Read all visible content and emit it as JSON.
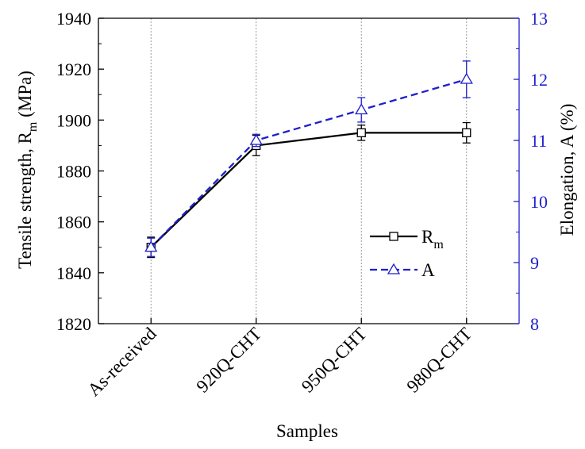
{
  "chart_data": {
    "type": "line",
    "xlabel": "Samples",
    "categories": [
      "As-received",
      "920Q-CHT",
      "950Q-CHT",
      "980Q-CHT"
    ],
    "y_left": {
      "label_main": "Tensile strength, R",
      "label_sub": "m",
      "label_unit": " (MPa)",
      "lim": [
        1820,
        1940
      ],
      "ticks": [
        1820,
        1840,
        1860,
        1880,
        1900,
        1920,
        1940
      ]
    },
    "y_right": {
      "label": "Elongation, A (%)",
      "lim": [
        8,
        13
      ],
      "ticks": [
        8,
        9,
        10,
        11,
        12,
        13
      ],
      "color": "#1f1fcc"
    },
    "grid": "vertical dotted lines at categories",
    "legend_position": "center-right",
    "series": [
      {
        "name_main": "R",
        "name_sub": "m",
        "axis": "left",
        "color": "#000000",
        "line_style": "solid",
        "marker": "square",
        "values": [
          1850,
          1890,
          1895,
          1895
        ],
        "errors": [
          4,
          4,
          3,
          4
        ]
      },
      {
        "name_main": "A",
        "axis": "right",
        "color": "#1f1fcc",
        "line_style": "dashed",
        "marker": "triangle",
        "values": [
          9.25,
          11.0,
          11.5,
          12.0
        ],
        "errors": [
          0.15,
          0.1,
          0.2,
          0.3
        ]
      }
    ]
  }
}
